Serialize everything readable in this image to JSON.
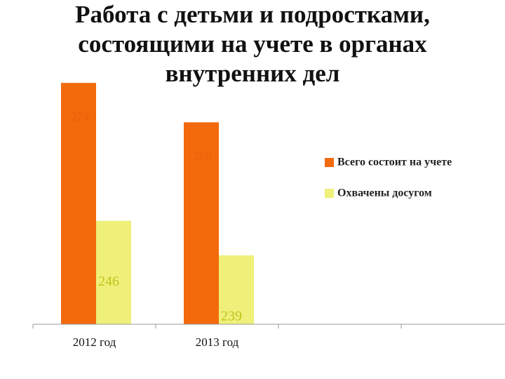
{
  "chart_data": {
    "type": "bar",
    "title": "Работа с детьми и подростками, состоящими на учете в органах внутренних дел",
    "categories": [
      "2012 год",
      "2013 год",
      null,
      null
    ],
    "series": [
      {
        "name": "Всего состоит на учете",
        "color": "#f26a0c",
        "values": [
          274,
          266,
          null,
          null
        ]
      },
      {
        "name": "Охвачены досугом",
        "color": "#eef07a",
        "values": [
          246,
          239,
          null,
          null
        ]
      }
    ],
    "ylim": [
      225,
      280
    ],
    "legend": "right"
  }
}
